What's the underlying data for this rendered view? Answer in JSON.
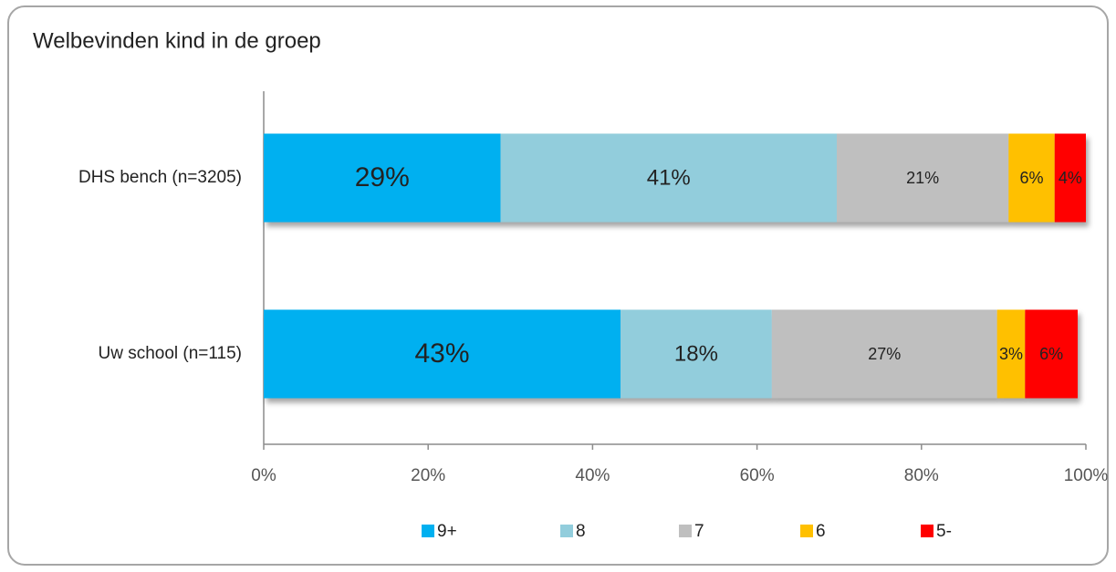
{
  "chart_data": {
    "type": "stacked_barh",
    "title": "Welbevinden kind in de groep",
    "categories": [
      "DHS bench (n=3205)",
      "Uw school (n=115)"
    ],
    "series": [
      {
        "name": "9+",
        "color": "#00b0f0",
        "values": [
          28.8,
          43.4
        ],
        "value_labels": [
          "29%",
          "43%"
        ]
      },
      {
        "name": "8",
        "color": "#92cddc",
        "values": [
          40.9,
          18.4
        ],
        "value_labels": [
          "41%",
          "18%"
        ]
      },
      {
        "name": "7",
        "color": "#bfbfbf",
        "values": [
          20.9,
          27.4
        ],
        "value_labels": [
          "21%",
          "27%"
        ]
      },
      {
        "name": "6",
        "color": "#ffc000",
        "values": [
          5.6,
          3.4
        ],
        "value_labels": [
          "6%",
          "3%"
        ]
      },
      {
        "name": "5-",
        "color": "#ff0000",
        "values": [
          3.8,
          6.4
        ],
        "value_labels": [
          "4%",
          "6%"
        ]
      }
    ],
    "xlim": [
      0,
      100
    ],
    "xticks": [
      {
        "value": 0,
        "label": "0%"
      },
      {
        "value": 20,
        "label": "20%"
      },
      {
        "value": 40,
        "label": "40%"
      },
      {
        "value": 60,
        "label": "60%"
      },
      {
        "value": 80,
        "label": "80%"
      },
      {
        "value": 100,
        "label": "100%"
      }
    ],
    "legend": "bottom"
  }
}
